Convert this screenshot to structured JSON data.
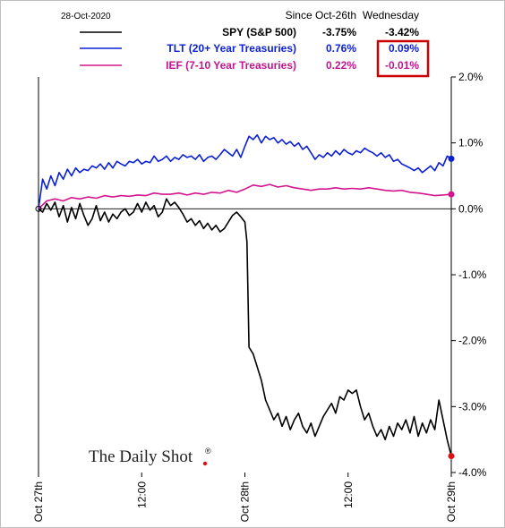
{
  "chart_data": {
    "type": "line",
    "date_label": "28-Oct-2020",
    "legend_headers": [
      "Since Oct-26th",
      "Wednesday"
    ],
    "x_tick_labels": [
      "Oct 27th",
      "12:00",
      "Oct 28th",
      "12:00",
      "Oct 29th"
    ],
    "x_tick_positions": [
      0,
      0.5,
      1,
      1.5,
      2
    ],
    "xlim": [
      0,
      2
    ],
    "ylim": [
      -4.0,
      2.0
    ],
    "y_ticks": [
      2.0,
      1.0,
      0.0,
      -1.0,
      -2.0,
      -3.0,
      -4.0
    ],
    "y_tick_labels": [
      "2.0%",
      "1.0%",
      "0.0%",
      "-1.0%",
      "-2.0%",
      "-3.0%",
      "-4.0%"
    ],
    "watermark": "The Daily Shot",
    "watermark_mark": "®",
    "highlight_color": "#cc0000",
    "series": [
      {
        "name": "SPY (S&P 500)",
        "since": "-3.75%",
        "wednesday": "-3.42%",
        "color": "#000000",
        "label_color": "#000000",
        "end_marker_color": "#dd1111",
        "x": [
          0,
          0.02,
          0.04,
          0.06,
          0.08,
          0.1,
          0.12,
          0.14,
          0.16,
          0.18,
          0.2,
          0.22,
          0.24,
          0.26,
          0.28,
          0.3,
          0.32,
          0.34,
          0.36,
          0.38,
          0.4,
          0.42,
          0.44,
          0.46,
          0.48,
          0.5,
          0.52,
          0.54,
          0.56,
          0.58,
          0.6,
          0.62,
          0.64,
          0.66,
          0.68,
          0.7,
          0.72,
          0.74,
          0.76,
          0.78,
          0.8,
          0.82,
          0.84,
          0.86,
          0.88,
          0.9,
          0.92,
          0.94,
          0.96,
          0.98,
          1.0,
          1.01,
          1.02,
          1.04,
          1.06,
          1.08,
          1.1,
          1.12,
          1.14,
          1.16,
          1.18,
          1.2,
          1.22,
          1.24,
          1.26,
          1.28,
          1.3,
          1.32,
          1.34,
          1.36,
          1.38,
          1.4,
          1.42,
          1.44,
          1.46,
          1.48,
          1.5,
          1.52,
          1.54,
          1.56,
          1.58,
          1.6,
          1.62,
          1.64,
          1.66,
          1.68,
          1.7,
          1.72,
          1.74,
          1.76,
          1.78,
          1.8,
          1.82,
          1.84,
          1.86,
          1.88,
          1.9,
          1.92,
          1.94,
          1.96,
          1.98,
          2.0
        ],
        "y": [
          0.0,
          -0.05,
          0.08,
          -0.02,
          0.1,
          -0.12,
          0.05,
          -0.2,
          0.02,
          -0.15,
          0.08,
          -0.1,
          -0.25,
          -0.15,
          0.05,
          -0.18,
          -0.05,
          -0.2,
          -0.08,
          -0.15,
          -0.05,
          0.0,
          -0.1,
          -0.05,
          0.08,
          -0.05,
          0.1,
          -0.02,
          0.05,
          -0.12,
          -0.05,
          0.15,
          0.05,
          0.1,
          0.02,
          -0.08,
          -0.2,
          -0.15,
          -0.25,
          -0.18,
          -0.3,
          -0.22,
          -0.32,
          -0.25,
          -0.35,
          -0.3,
          -0.2,
          -0.1,
          -0.05,
          -0.12,
          -0.2,
          -0.5,
          -2.1,
          -2.2,
          -2.4,
          -2.6,
          -2.9,
          -3.05,
          -3.2,
          -3.1,
          -3.3,
          -3.15,
          -3.35,
          -3.2,
          -3.1,
          -3.3,
          -3.4,
          -3.25,
          -3.45,
          -3.3,
          -3.15,
          -3.05,
          -2.95,
          -3.1,
          -2.85,
          -2.9,
          -2.75,
          -2.8,
          -2.75,
          -3.0,
          -3.2,
          -3.1,
          -3.3,
          -3.45,
          -3.35,
          -3.5,
          -3.3,
          -3.45,
          -3.25,
          -3.35,
          -3.2,
          -3.4,
          -3.15,
          -3.45,
          -3.25,
          -3.4,
          -3.2,
          -3.35,
          -2.9,
          -3.2,
          -3.5,
          -3.75
        ]
      },
      {
        "name": "TLT (20+ Year Treasuries)",
        "since": "0.76%",
        "wednesday": "0.09%",
        "color": "#0b1fd6",
        "label_color": "#0b1fd6",
        "end_marker_color": "#0b1fd6",
        "x": [
          0,
          0.02,
          0.04,
          0.06,
          0.08,
          0.1,
          0.12,
          0.14,
          0.16,
          0.18,
          0.2,
          0.22,
          0.24,
          0.26,
          0.28,
          0.3,
          0.32,
          0.34,
          0.36,
          0.38,
          0.4,
          0.42,
          0.44,
          0.46,
          0.48,
          0.5,
          0.52,
          0.54,
          0.56,
          0.58,
          0.6,
          0.62,
          0.64,
          0.66,
          0.68,
          0.7,
          0.72,
          0.74,
          0.76,
          0.78,
          0.8,
          0.82,
          0.84,
          0.86,
          0.88,
          0.9,
          0.92,
          0.94,
          0.96,
          0.98,
          1.0,
          1.02,
          1.04,
          1.06,
          1.08,
          1.1,
          1.12,
          1.14,
          1.16,
          1.18,
          1.2,
          1.22,
          1.24,
          1.26,
          1.28,
          1.3,
          1.32,
          1.34,
          1.36,
          1.38,
          1.4,
          1.42,
          1.44,
          1.46,
          1.48,
          1.5,
          1.52,
          1.54,
          1.56,
          1.58,
          1.6,
          1.62,
          1.64,
          1.66,
          1.68,
          1.7,
          1.72,
          1.74,
          1.76,
          1.78,
          1.8,
          1.82,
          1.84,
          1.86,
          1.88,
          1.9,
          1.92,
          1.94,
          1.96,
          1.98,
          2.0
        ],
        "y": [
          0.0,
          0.45,
          0.3,
          0.5,
          0.35,
          0.55,
          0.45,
          0.6,
          0.5,
          0.62,
          0.55,
          0.6,
          0.58,
          0.65,
          0.62,
          0.68,
          0.6,
          0.7,
          0.62,
          0.72,
          0.68,
          0.65,
          0.72,
          0.7,
          0.75,
          0.68,
          0.72,
          0.7,
          0.8,
          0.72,
          0.75,
          0.8,
          0.72,
          0.78,
          0.75,
          0.82,
          0.78,
          0.8,
          0.75,
          0.82,
          0.72,
          0.78,
          0.8,
          0.75,
          0.82,
          0.9,
          0.85,
          0.8,
          0.9,
          0.78,
          0.95,
          1.1,
          1.05,
          1.12,
          1.0,
          1.1,
          1.05,
          1.08,
          1.0,
          1.05,
          0.98,
          1.02,
          0.95,
          1.0,
          0.9,
          0.95,
          0.85,
          0.75,
          0.82,
          0.78,
          0.85,
          0.8,
          0.88,
          0.82,
          0.9,
          0.85,
          0.82,
          0.88,
          0.85,
          0.92,
          0.88,
          0.85,
          0.8,
          0.85,
          0.78,
          0.82,
          0.72,
          0.75,
          0.68,
          0.65,
          0.62,
          0.58,
          0.62,
          0.55,
          0.6,
          0.65,
          0.58,
          0.7,
          0.65,
          0.8,
          0.76
        ]
      },
      {
        "name": "IEF (7-10 Year Treasuries)",
        "since": "0.22%",
        "wednesday": "-0.01%",
        "color": "#d4148f",
        "label_color": "#c4148f",
        "end_marker_color": "#d4148f",
        "x": [
          0,
          0.04,
          0.08,
          0.12,
          0.16,
          0.2,
          0.24,
          0.28,
          0.32,
          0.36,
          0.4,
          0.44,
          0.48,
          0.52,
          0.56,
          0.6,
          0.64,
          0.68,
          0.72,
          0.76,
          0.8,
          0.84,
          0.88,
          0.92,
          0.96,
          1.0,
          1.04,
          1.08,
          1.12,
          1.16,
          1.2,
          1.24,
          1.28,
          1.32,
          1.36,
          1.4,
          1.44,
          1.48,
          1.52,
          1.56,
          1.6,
          1.64,
          1.68,
          1.72,
          1.76,
          1.8,
          1.84,
          1.88,
          1.92,
          1.96,
          2.0
        ],
        "y": [
          0.0,
          0.12,
          0.15,
          0.12,
          0.17,
          0.15,
          0.18,
          0.16,
          0.2,
          0.18,
          0.2,
          0.19,
          0.21,
          0.2,
          0.24,
          0.22,
          0.22,
          0.24,
          0.21,
          0.24,
          0.22,
          0.25,
          0.24,
          0.28,
          0.25,
          0.3,
          0.36,
          0.34,
          0.37,
          0.33,
          0.35,
          0.32,
          0.3,
          0.28,
          0.3,
          0.3,
          0.32,
          0.3,
          0.31,
          0.3,
          0.32,
          0.3,
          0.28,
          0.27,
          0.28,
          0.25,
          0.24,
          0.22,
          0.2,
          0.21,
          0.22
        ]
      }
    ]
  }
}
